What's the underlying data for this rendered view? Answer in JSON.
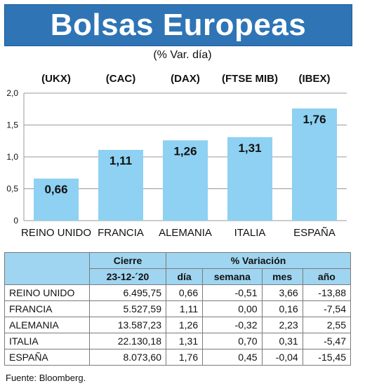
{
  "header": {
    "title": "Bolsas Europeas",
    "subtitle": "(% Var. día)"
  },
  "chart_data": {
    "type": "bar",
    "categories": [
      "REINO UNIDO",
      "FRANCIA",
      "ALEMANIA",
      "ITALIA",
      "ESPAÑA"
    ],
    "index_codes": [
      "(UKX)",
      "(CAC)",
      "(DAX)",
      "(FTSE MIB)",
      "(IBEX)"
    ],
    "values": [
      0.66,
      1.11,
      1.26,
      1.31,
      1.76
    ],
    "value_labels": [
      "0,66",
      "1,11",
      "1,26",
      "1,31",
      "1,76"
    ],
    "yticks": [
      0,
      0.5,
      1.0,
      1.5,
      2.0
    ],
    "ytick_labels": [
      "0",
      "0,5",
      "1,0",
      "1,5",
      "2,0"
    ],
    "ylim": [
      0,
      2.0
    ],
    "grid": true,
    "bar_color": "#8ed1f2"
  },
  "table": {
    "header_top": {
      "cierre": "Cierre",
      "variacion": "% Variación"
    },
    "header_sub": {
      "date": "23-12-´20",
      "dia": "día",
      "semana": "semana",
      "mes": "mes",
      "ano": "año"
    },
    "rows": [
      {
        "name": "REINO UNIDO",
        "cierre": "6.495,75",
        "dia": "0,66",
        "semana": "-0,51",
        "mes": "3,66",
        "ano": "-13,88"
      },
      {
        "name": "FRANCIA",
        "cierre": "5.527,59",
        "dia": "1,11",
        "semana": "0,00",
        "mes": "0,16",
        "ano": "-7,54"
      },
      {
        "name": "ALEMANIA",
        "cierre": "13.587,23",
        "dia": "1,26",
        "semana": "-0,32",
        "mes": "2,23",
        "ano": "2,55"
      },
      {
        "name": "ITALIA",
        "cierre": "22.130,18",
        "dia": "1,31",
        "semana": "0,70",
        "mes": "0,31",
        "ano": "-5,47"
      },
      {
        "name": "ESPAÑA",
        "cierre": "8.073,60",
        "dia": "1,76",
        "semana": "0,45",
        "mes": "-0,04",
        "ano": "-15,45"
      }
    ],
    "header_color": "#9fd5f0"
  },
  "source": "Fuente: Bloomberg.",
  "colors": {
    "title_bg": "#2f74b5"
  }
}
